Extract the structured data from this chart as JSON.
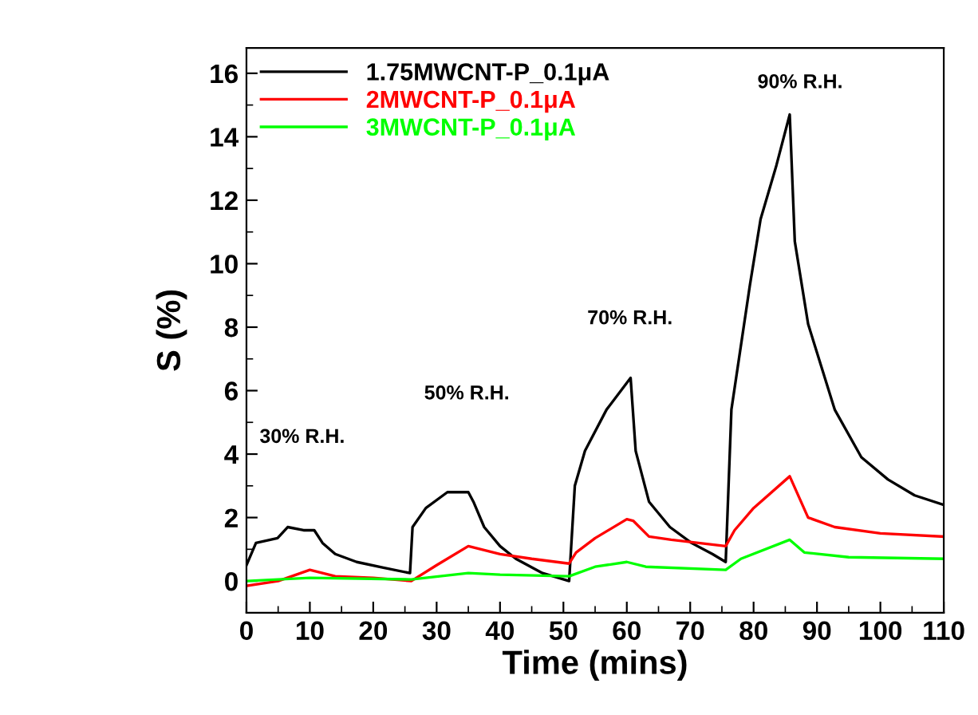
{
  "chart_data": {
    "type": "line",
    "xlabel": "Time (mins)",
    "ylabel": "S (%)",
    "xlim": [
      0,
      110
    ],
    "ylim": [
      -1,
      16.8
    ],
    "xticks": [
      0,
      10,
      20,
      30,
      40,
      50,
      60,
      70,
      80,
      90,
      100,
      110
    ],
    "yticks": [
      0,
      2,
      4,
      6,
      8,
      10,
      12,
      14,
      16
    ],
    "grid": false,
    "legend": "top left",
    "marker": "none",
    "line_style": "solid",
    "annotations": [
      "30% R.H.",
      "50% R.H.",
      "70% R.H.",
      "90% R.H."
    ],
    "series": [
      {
        "name": "1.75MWCNT-P_0.1μA",
        "color": "#000000",
        "x": [
          0,
          1.5,
          4.9,
          6.5,
          9,
          10.7,
          12,
          14,
          17.4,
          21.6,
          25.8,
          26.2,
          28.3,
          31.7,
          35,
          35.8,
          37.5,
          40,
          42.5,
          46.7,
          50.9,
          51.8,
          53.4,
          56.8,
          60.6,
          61.4,
          63.5,
          66.8,
          70.2,
          73.5,
          75.6,
          76.5,
          79.4,
          81.1,
          83.6,
          85.7,
          86.5,
          88.6,
          92.8,
          97,
          101.2,
          105.4,
          110
        ],
        "values": [
          0.5,
          1.2,
          1.35,
          1.7,
          1.6,
          1.6,
          1.2,
          0.85,
          0.6,
          0.42,
          0.25,
          1.7,
          2.3,
          2.8,
          2.8,
          2.5,
          1.7,
          1.1,
          0.7,
          0.25,
          0,
          3.0,
          4.1,
          5.4,
          6.4,
          4.1,
          2.5,
          1.7,
          1.2,
          0.85,
          0.6,
          5.4,
          9.3,
          11.4,
          13.1,
          14.7,
          10.7,
          8.1,
          5.4,
          3.9,
          3.2,
          2.7,
          2.4
        ]
      },
      {
        "name": "2MWCNT-P_0.1μA",
        "color": "#ff0000",
        "x": [
          0,
          5,
          10,
          14,
          20,
          26,
          30,
          35,
          40,
          45,
          50.9,
          52,
          55,
          60,
          61,
          63.5,
          67,
          75.6,
          77,
          80,
          85.7,
          88.6,
          92.8,
          100,
          110
        ],
        "values": [
          -0.15,
          0,
          0.35,
          0.15,
          0.1,
          0,
          0.5,
          1.1,
          0.85,
          0.7,
          0.55,
          0.9,
          1.35,
          1.95,
          1.9,
          1.4,
          1.3,
          1.1,
          1.6,
          2.3,
          3.3,
          2.0,
          1.7,
          1.5,
          1.4
        ]
      },
      {
        "name": "3MWCNT-P_0.1μA",
        "color": "#00ff00",
        "x": [
          0,
          10,
          26,
          35,
          40,
          50.9,
          55,
          60,
          63,
          75.6,
          78,
          85.7,
          88,
          95,
          110
        ],
        "values": [
          0,
          0.1,
          0.05,
          0.25,
          0.2,
          0.15,
          0.45,
          0.6,
          0.45,
          0.35,
          0.7,
          1.3,
          0.9,
          0.75,
          0.7
        ]
      }
    ]
  }
}
